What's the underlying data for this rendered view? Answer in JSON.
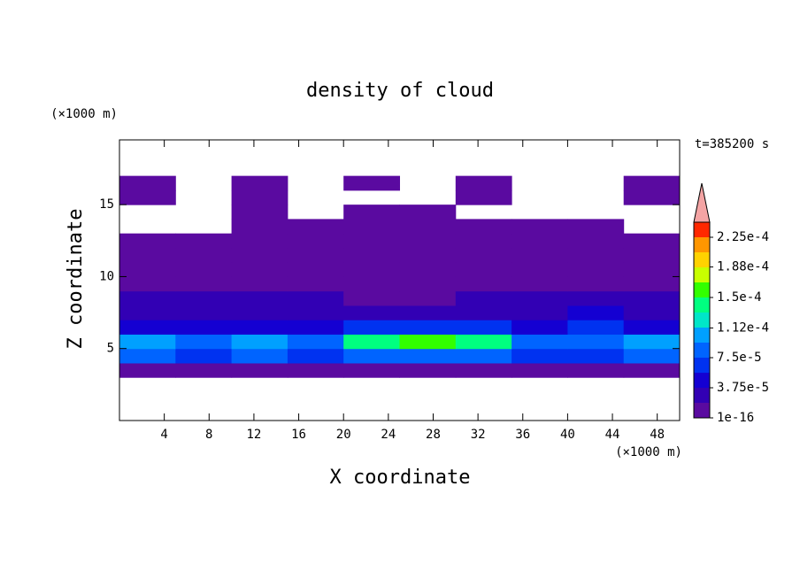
{
  "chart_data": {
    "type": "contour",
    "title": "density of cloud",
    "x_label": "X coordinate",
    "y_label": "Z coordinate",
    "x_unit": "(×1000 m)",
    "y_unit": "(×1000 m)",
    "annotation": "t=385200 s",
    "xlim": [
      0,
      50
    ],
    "xticks": [
      4,
      8,
      12,
      16,
      20,
      24,
      28,
      32,
      36,
      40,
      44,
      48
    ],
    "ylim": [
      0,
      19.5
    ],
    "yticks": [
      5,
      10,
      15
    ],
    "field": {
      "x": [
        2.5,
        7.5,
        12.5,
        17.5,
        22.5,
        27.5,
        32.5,
        37.5,
        42.5,
        47.5
      ],
      "z": [
        3.5,
        4.5,
        5.5,
        6.5,
        7.5,
        8.5,
        9.5,
        10.5,
        11.5,
        12.5,
        13.5,
        14.5,
        15.5,
        16.5
      ],
      "values": [
        [
          1e-05,
          1e-05,
          1e-05,
          1e-05,
          1e-05,
          1e-05,
          1e-05,
          1e-05,
          1e-05,
          1e-05
        ],
        [
          8e-05,
          6e-05,
          8e-05,
          7e-05,
          9e-05,
          9e-05,
          8e-05,
          6e-05,
          7e-05,
          8e-05
        ],
        [
          0.00011,
          8e-05,
          0.0001,
          8e-05,
          0.00014,
          0.00016,
          0.00014,
          8e-05,
          9e-05,
          0.00011
        ],
        [
          5e-05,
          4e-05,
          5e-05,
          5e-05,
          7e-05,
          7e-05,
          6e-05,
          4e-05,
          6e-05,
          5e-05
        ],
        [
          3e-05,
          3e-05,
          3e-05,
          2e-05,
          3e-05,
          3e-05,
          3e-05,
          2e-05,
          4e-05,
          3e-05
        ],
        [
          2e-05,
          2e-05,
          2e-05,
          2e-05,
          1e-05,
          1e-05,
          2e-05,
          2e-05,
          2e-05,
          2e-05
        ],
        [
          1e-05,
          1e-05,
          1e-05,
          1e-05,
          1e-05,
          1e-05,
          1e-05,
          1e-05,
          1e-05,
          1e-05
        ],
        [
          1e-05,
          1e-05,
          1e-05,
          1e-05,
          1e-05,
          1e-05,
          1e-05,
          1e-05,
          1e-05,
          1e-05
        ],
        [
          1e-05,
          1e-05,
          1e-05,
          1e-05,
          1e-05,
          1e-05,
          1e-05,
          1e-05,
          1e-05,
          1e-05
        ],
        [
          1e-05,
          1e-05,
          1e-05,
          1e-05,
          1e-05,
          1e-05,
          1e-05,
          1e-05,
          1e-05,
          1e-05
        ],
        [
          null,
          null,
          1e-05,
          1e-05,
          1e-05,
          1e-05,
          1e-05,
          1e-05,
          1e-05,
          null
        ],
        [
          null,
          null,
          1e-05,
          null,
          1e-05,
          1e-05,
          null,
          null,
          null,
          null
        ],
        [
          1e-05,
          null,
          1e-05,
          null,
          null,
          null,
          1e-05,
          null,
          null,
          1e-05
        ],
        [
          1e-05,
          null,
          1e-05,
          null,
          1e-05,
          null,
          1e-05,
          null,
          null,
          1e-05
        ]
      ]
    },
    "levels": [
      1e-16,
      1.875e-05,
      3.75e-05,
      5.625e-05,
      7.5e-05,
      9.375e-05,
      0.0001125,
      0.00013125,
      0.00015,
      0.00016875,
      0.0001875,
      0.00020625,
      0.000225,
      0.00024375
    ],
    "colors": [
      "#5a0aa0",
      "#3200b4",
      "#1400d2",
      "#0032f0",
      "#0064ff",
      "#00a0ff",
      "#00e6c8",
      "#00ff80",
      "#32ff00",
      "#c8ff00",
      "#ffd200",
      "#ff9600",
      "#ff2800"
    ],
    "extend_color": "#f4a4a4",
    "cticks": [
      1e-16,
      {
        "value": 3.75e-05,
        "label": "3.75e-5"
      },
      {
        "value": 7.5e-05,
        "label": "7.5e-5"
      },
      {
        "value": 0.000112,
        "label": "1.12e-4"
      },
      {
        "value": 0.00015,
        "label": "1.5e-4"
      },
      {
        "value": 0.000188,
        "label": "1.88e-4"
      },
      {
        "value": 0.000225,
        "label": "2.25e-4"
      }
    ]
  }
}
